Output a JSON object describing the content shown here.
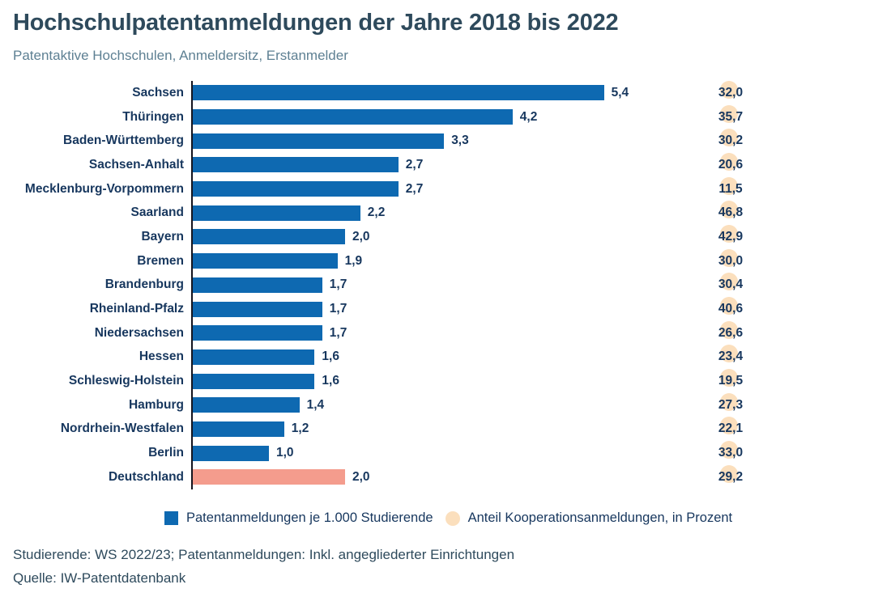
{
  "chart_data": {
    "type": "bar",
    "orientation": "horizontal",
    "title": "Hochschulpatentanmeldungen der Jahre 2018 bis 2022",
    "subtitle": "Patentaktive Hochschulen, Anmeldersitz, Erstanmelder",
    "categories": [
      "Sachsen",
      "Thüringen",
      "Baden-Württemberg",
      "Sachsen-Anhalt",
      "Mecklenburg-Vorpommern",
      "Saarland",
      "Bayern",
      "Bremen",
      "Brandenburg",
      "Rheinland-Pfalz",
      "Niedersachsen",
      "Hessen",
      "Schleswig-Holstein",
      "Hamburg",
      "Nordrhein-Westfalen",
      "Berlin",
      "Deutschland"
    ],
    "series": [
      {
        "name": "Patentanmeldungen je 1.000 Studierende",
        "shape": "bar",
        "values": [
          5.4,
          4.2,
          3.3,
          2.7,
          2.7,
          2.2,
          2.0,
          1.9,
          1.7,
          1.7,
          1.7,
          1.6,
          1.6,
          1.4,
          1.2,
          1.0,
          2.0
        ]
      },
      {
        "name": "Anteil Kooperationsanmeldungen, in Prozent",
        "shape": "dot",
        "values": [
          32.0,
          35.7,
          30.2,
          20.6,
          11.5,
          46.8,
          42.9,
          30.0,
          30.4,
          40.6,
          26.6,
          23.4,
          19.5,
          27.3,
          22.1,
          33.0,
          29.2
        ]
      }
    ],
    "highlight_category": "Deutschland",
    "xlim": [
      0,
      5.8
    ],
    "grid": false,
    "legend_position": "bottom",
    "colors": {
      "bar": "#0e69b1",
      "highlight_bar": "#f49c8d",
      "dot": "#fbdfbd",
      "label_text": "#17375e",
      "axis_line": "#15151f"
    }
  },
  "footer": {
    "note": "Studierende: WS 2022/23; Patentanmeldungen: Inkl. angegliederter Einrichtungen",
    "source": "Quelle: IW-Patentdatenbank"
  }
}
